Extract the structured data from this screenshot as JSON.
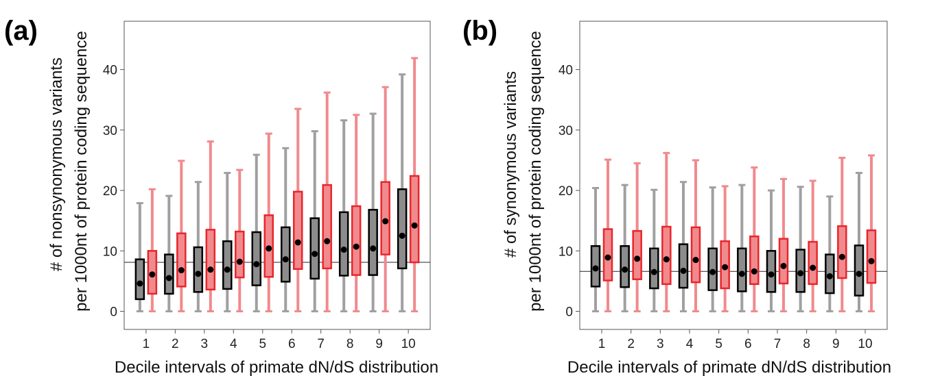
{
  "chart_data": [
    {
      "type": "boxplot",
      "panel_label": "(a)",
      "xlabel": "Decile intervals of primate dN/dS distribution",
      "ylabel_lines": [
        "# of nonsynonymous variants",
        "per 1000nt of protein coding sequence"
      ],
      "categories": [
        "1",
        "2",
        "3",
        "4",
        "5",
        "6",
        "7",
        "8",
        "9",
        "10"
      ],
      "yticks": [
        0,
        10,
        20,
        30,
        40
      ],
      "ylim": [
        -3,
        48
      ],
      "reference_line": 8.1,
      "series": [
        {
          "color": "#000000",
          "fill": "#8c8c8c",
          "whisker_color": "#a0a0a0",
          "boxes": [
            {
              "min": 0,
              "q1": 2.0,
              "median": 4.6,
              "q3": 8.6,
              "max": 17.9
            },
            {
              "min": 0,
              "q1": 2.9,
              "median": 5.5,
              "q3": 9.4,
              "max": 19.1
            },
            {
              "min": 0,
              "q1": 3.2,
              "median": 6.2,
              "q3": 10.6,
              "max": 21.4
            },
            {
              "min": 0,
              "q1": 3.7,
              "median": 6.9,
              "q3": 11.6,
              "max": 22.9
            },
            {
              "min": 0,
              "q1": 4.3,
              "median": 7.8,
              "q3": 13.1,
              "max": 25.9
            },
            {
              "min": 0,
              "q1": 4.9,
              "median": 8.6,
              "q3": 13.9,
              "max": 27.0
            },
            {
              "min": 0,
              "q1": 5.4,
              "median": 9.5,
              "q3": 15.4,
              "max": 29.8
            },
            {
              "min": 0,
              "q1": 5.9,
              "median": 10.2,
              "q3": 16.4,
              "max": 31.6
            },
            {
              "min": 0,
              "q1": 6.0,
              "median": 10.4,
              "q3": 16.8,
              "max": 32.7
            },
            {
              "min": 0,
              "q1": 7.1,
              "median": 12.5,
              "q3": 20.2,
              "max": 39.2
            }
          ]
        },
        {
          "color": "#e8262c",
          "fill": "#f08a8d",
          "whisker_color": "#f08a8d",
          "boxes": [
            {
              "min": 0,
              "q1": 2.9,
              "median": 6.1,
              "q3": 10.0,
              "max": 20.2
            },
            {
              "min": 0,
              "q1": 4.1,
              "median": 6.8,
              "q3": 12.9,
              "max": 24.9
            },
            {
              "min": 0,
              "q1": 3.6,
              "median": 6.9,
              "q3": 13.5,
              "max": 28.1
            },
            {
              "min": 0,
              "q1": 5.6,
              "median": 8.2,
              "q3": 13.2,
              "max": 23.4
            },
            {
              "min": 0,
              "q1": 5.7,
              "median": 10.4,
              "q3": 15.9,
              "max": 29.4
            },
            {
              "min": 0,
              "q1": 7.0,
              "median": 11.4,
              "q3": 19.8,
              "max": 33.5
            },
            {
              "min": 0,
              "q1": 7.1,
              "median": 11.6,
              "q3": 20.9,
              "max": 36.2
            },
            {
              "min": 0,
              "q1": 6.0,
              "median": 10.7,
              "q3": 17.4,
              "max": 32.5
            },
            {
              "min": 0,
              "q1": 9.4,
              "median": 14.9,
              "q3": 21.4,
              "max": 37.1
            },
            {
              "min": 0,
              "q1": 8.1,
              "median": 14.2,
              "q3": 22.4,
              "max": 41.9
            }
          ]
        }
      ]
    },
    {
      "type": "boxplot",
      "panel_label": "(b)",
      "xlabel": "Decile intervals of primate dN/dS distribution",
      "ylabel_lines": [
        "# of synonymous variants",
        "per 1000nt of protein coding sequence"
      ],
      "categories": [
        "1",
        "2",
        "3",
        "4",
        "5",
        "6",
        "7",
        "8",
        "9",
        "10"
      ],
      "yticks": [
        0,
        10,
        20,
        30,
        40
      ],
      "ylim": [
        -3,
        48
      ],
      "reference_line": 6.6,
      "series": [
        {
          "color": "#000000",
          "fill": "#8c8c8c",
          "whisker_color": "#a0a0a0",
          "boxes": [
            {
              "min": 0,
              "q1": 4.1,
              "median": 7.1,
              "q3": 10.8,
              "max": 20.4
            },
            {
              "min": 0,
              "q1": 4.0,
              "median": 6.9,
              "q3": 10.8,
              "max": 20.9
            },
            {
              "min": 0,
              "q1": 3.8,
              "median": 6.5,
              "q3": 10.4,
              "max": 20.1
            },
            {
              "min": 0,
              "q1": 3.9,
              "median": 6.7,
              "q3": 11.1,
              "max": 21.4
            },
            {
              "min": 0,
              "q1": 3.5,
              "median": 6.5,
              "q3": 10.4,
              "max": 20.5
            },
            {
              "min": 0,
              "q1": 3.3,
              "median": 6.2,
              "q3": 10.4,
              "max": 20.9
            },
            {
              "min": 0,
              "q1": 3.2,
              "median": 6.1,
              "q3": 10.0,
              "max": 20.0
            },
            {
              "min": 0,
              "q1": 3.2,
              "median": 6.3,
              "q3": 10.2,
              "max": 20.6
            },
            {
              "min": 0,
              "q1": 3.0,
              "median": 5.8,
              "q3": 9.4,
              "max": 19.0
            },
            {
              "min": 0,
              "q1": 2.6,
              "median": 6.2,
              "q3": 10.9,
              "max": 22.9
            }
          ]
        },
        {
          "color": "#e8262c",
          "fill": "#f08a8d",
          "whisker_color": "#f08a8d",
          "boxes": [
            {
              "min": 0,
              "q1": 5.1,
              "median": 8.9,
              "q3": 13.6,
              "max": 25.1
            },
            {
              "min": 0,
              "q1": 5.3,
              "median": 8.7,
              "q3": 13.3,
              "max": 24.5
            },
            {
              "min": 0,
              "q1": 4.5,
              "median": 8.6,
              "q3": 14.0,
              "max": 26.2
            },
            {
              "min": 0,
              "q1": 4.8,
              "median": 8.5,
              "q3": 13.9,
              "max": 25.0
            },
            {
              "min": 0,
              "q1": 3.8,
              "median": 7.3,
              "q3": 11.6,
              "max": 20.7
            },
            {
              "min": 0,
              "q1": 4.5,
              "median": 6.6,
              "q3": 12.4,
              "max": 23.8
            },
            {
              "min": 0,
              "q1": 4.6,
              "median": 7.5,
              "q3": 12.0,
              "max": 21.9
            },
            {
              "min": 0,
              "q1": 4.5,
              "median": 7.2,
              "q3": 11.5,
              "max": 21.6
            },
            {
              "min": 0,
              "q1": 5.5,
              "median": 9.0,
              "q3": 14.1,
              "max": 25.4
            },
            {
              "min": 0,
              "q1": 4.7,
              "median": 8.3,
              "q3": 13.4,
              "max": 25.8
            }
          ]
        }
      ]
    }
  ]
}
